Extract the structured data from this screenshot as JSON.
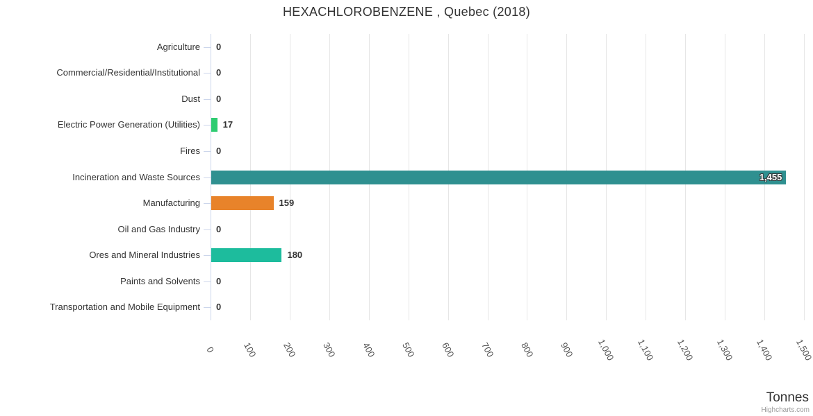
{
  "header": {
    "title": "HEXACHLOROBENZENE , Quebec (2018)"
  },
  "footer": {
    "axis_unit_label": "Tonnes",
    "credit": "Highcharts.com"
  },
  "colors": {
    "grid": "#e6e6e6",
    "axis": "#ccd6eb",
    "text": "#333333",
    "tick_text": "#555555",
    "credit_text": "#999999",
    "green": "#2ecc71",
    "dark_teal": "#2f9090",
    "orange": "#e8832a",
    "teal_green": "#1dbc9d"
  },
  "chart_data": {
    "type": "bar",
    "orientation": "horizontal",
    "title": "HEXACHLOROBENZENE , Quebec (2018)",
    "unit": "Tonnes",
    "xlim": [
      0,
      1500
    ],
    "tick_interval": 100,
    "tick_labels": [
      "0",
      "100",
      "200",
      "300",
      "400",
      "500",
      "600",
      "700",
      "800",
      "900",
      "1,000",
      "1,100",
      "1,200",
      "1,300",
      "1,400",
      "1,500"
    ],
    "grid": true,
    "legend": false,
    "points": [
      {
        "category": "Agriculture",
        "value": 0,
        "label": "0",
        "color": null
      },
      {
        "category": "Commercial/Residential/Institutional",
        "value": 0,
        "label": "0",
        "color": null
      },
      {
        "category": "Dust",
        "value": 0,
        "label": "0",
        "color": null
      },
      {
        "category": "Electric Power Generation (Utilities)",
        "value": 17,
        "label": "17",
        "color": "#2ecc71"
      },
      {
        "category": "Fires",
        "value": 0,
        "label": "0",
        "color": null
      },
      {
        "category": "Incineration and Waste Sources",
        "value": 1455,
        "label": "1,455",
        "color": "#2f9090",
        "label_inside": true
      },
      {
        "category": "Manufacturing",
        "value": 159,
        "label": "159",
        "color": "#e8832a"
      },
      {
        "category": "Oil and Gas Industry",
        "value": 0,
        "label": "0",
        "color": null
      },
      {
        "category": "Ores and Mineral Industries",
        "value": 180,
        "label": "180",
        "color": "#1dbc9d"
      },
      {
        "category": "Paints and Solvents",
        "value": 0,
        "label": "0",
        "color": null
      },
      {
        "category": "Transportation and Mobile Equipment",
        "value": 0,
        "label": "0",
        "color": null
      }
    ]
  }
}
